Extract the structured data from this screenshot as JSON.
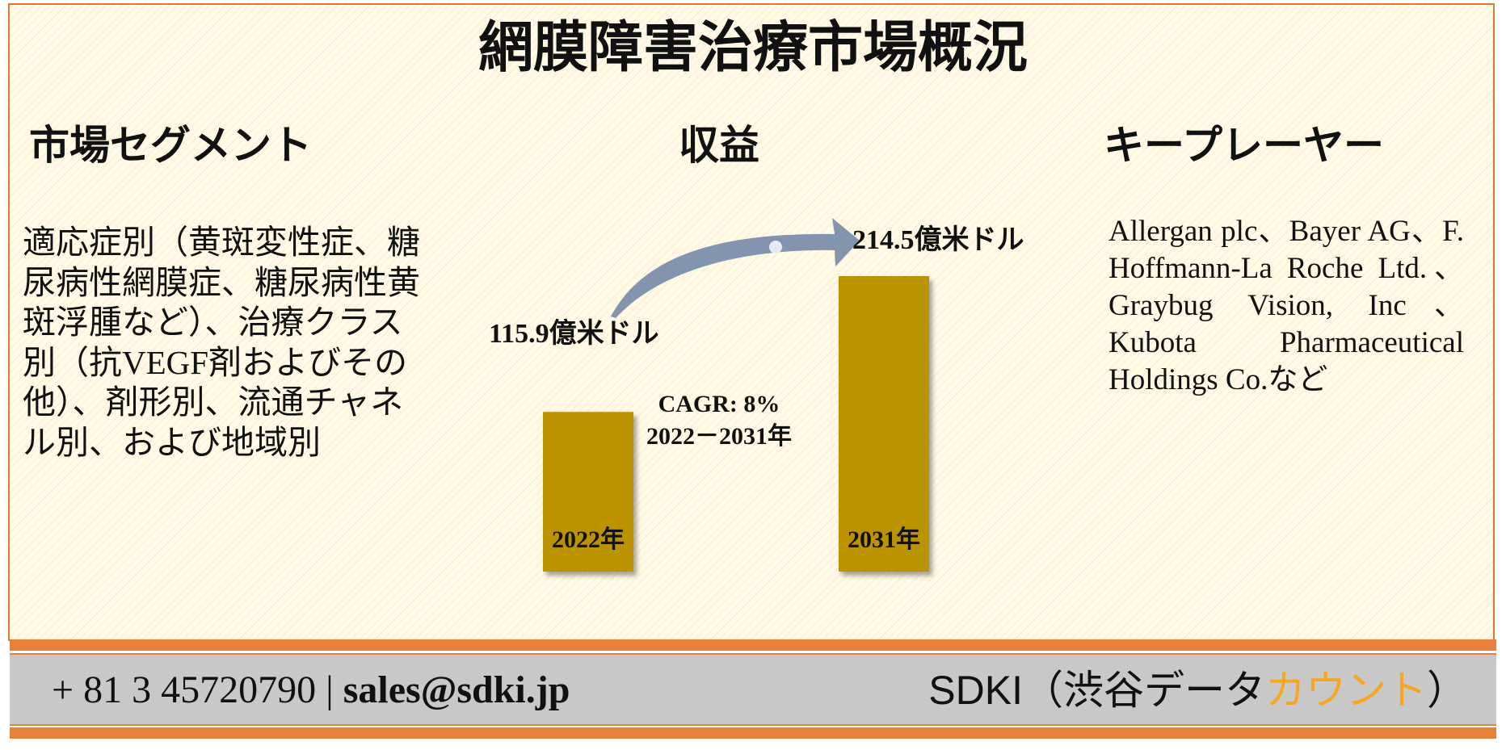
{
  "title": "網膜障害治療市場概況",
  "segments": {
    "heading": "市場セグメント",
    "text": "適応症別（黄斑変性症、糖尿病性網膜症、糖尿病性黄斑浮腫など）、治療クラス別（抗VEGF剤およびその他）、剤形別、流通チャネル別、および地域別"
  },
  "revenue": {
    "heading": "収益"
  },
  "key_players": {
    "heading": "キープレーヤー",
    "text": "Allergan plc、Bayer AG、F. Hoffmann-La Roche Ltd.、Graybug Vision, Inc、Kubota Pharmaceutical Holdings Co.など"
  },
  "chart_data": {
    "type": "bar",
    "categories": [
      "2022年",
      "2031年"
    ],
    "values": [
      115.9,
      214.5
    ],
    "value_labels": [
      "115.9億米ドル",
      "214.5億米ドル"
    ],
    "annotation": [
      "CAGR: 8%",
      "2022－2031年"
    ],
    "bar_color": "#bb9205",
    "arrow_color": "#8294ae"
  },
  "footer": {
    "phone": "+ 81 3 45720790",
    "separator": "|",
    "email": "sales@sdki.jp",
    "brand_prefix": "SDKI（渋谷データ",
    "brand_accent": "カウント",
    "brand_suffix": "）",
    "accent_color": "#f5a623",
    "line_color": "#e8803a"
  }
}
